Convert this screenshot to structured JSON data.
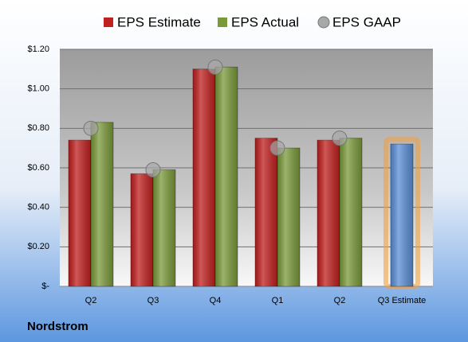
{
  "chart_data": {
    "type": "bar",
    "categories": [
      "Q2",
      "Q3",
      "Q4",
      "Q1",
      "Q2",
      "Q3 Estimate"
    ],
    "series": [
      {
        "name": "EPS Estimate",
        "color": "#c0201f",
        "colors": [
          "#c0201f",
          "#c0201f",
          "#c0201f",
          "#c0201f",
          "#c0201f",
          "#5b8fd6"
        ],
        "values": [
          0.74,
          0.57,
          1.1,
          0.75,
          0.74,
          0.72
        ]
      },
      {
        "name": "EPS Actual",
        "color": "#7a9a3a",
        "values": [
          0.83,
          0.59,
          1.11,
          0.7,
          0.75,
          null
        ]
      },
      {
        "name": "EPS GAAP",
        "color": "#a8a8a8",
        "marker": "circle",
        "values": [
          0.8,
          0.59,
          1.11,
          0.7,
          0.75,
          null
        ]
      }
    ],
    "ylim": [
      0,
      1.2
    ],
    "yticks": [
      {
        "value": 0,
        "label": "$-"
      },
      {
        "value": 0.2,
        "label": "$0.20"
      },
      {
        "value": 0.4,
        "label": "$0.40"
      },
      {
        "value": 0.6,
        "label": "$0.60"
      },
      {
        "value": 0.8,
        "label": "$0.80"
      },
      {
        "value": 1.0,
        "label": "$1.00"
      },
      {
        "value": 1.2,
        "label": "$1.20"
      }
    ],
    "grid": true,
    "highlight_color": "#f0a040",
    "company": "Nordstrom"
  }
}
